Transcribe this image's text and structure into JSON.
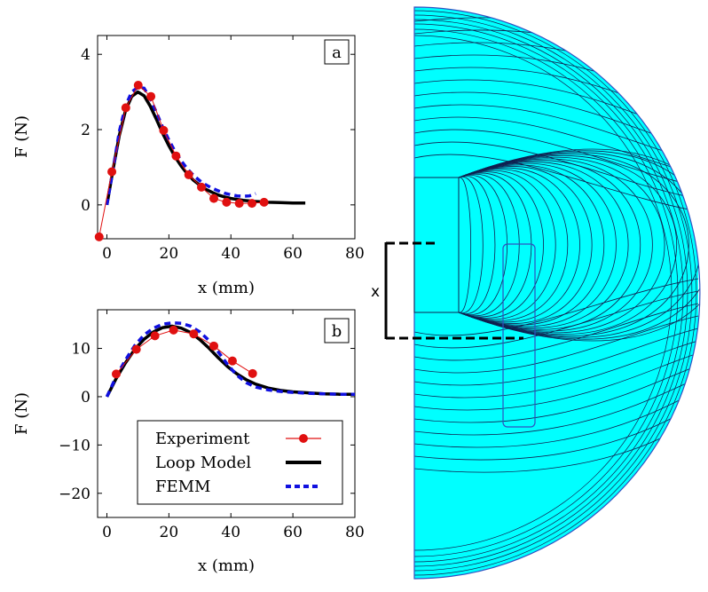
{
  "chart_data": [
    {
      "type": "line",
      "panel_label": "a",
      "xlabel": "x (mm)",
      "ylabel": "F (N)",
      "xlim": [
        -3,
        80
      ],
      "ylim": [
        -0.9,
        4.5
      ],
      "xticks": [
        0,
        20,
        40,
        60,
        80
      ],
      "yticks": [
        0,
        2,
        4
      ],
      "series": [
        {
          "name": "Experiment",
          "style": "markers-red",
          "x": [
            -2.5,
            1.6,
            6.1,
            10.1,
            14.2,
            18.3,
            22.3,
            26.4,
            30.5,
            34.5,
            38.6,
            42.7,
            46.8,
            50.7
          ],
          "y": [
            -0.85,
            0.88,
            2.58,
            3.18,
            2.88,
            1.98,
            1.3,
            0.8,
            0.47,
            0.17,
            0.07,
            0.04,
            0.04,
            0.07
          ]
        },
        {
          "name": "Loop Model",
          "style": "thick-black",
          "x": [
            0,
            2,
            4,
            6,
            8,
            10,
            12,
            14,
            16,
            18,
            20,
            22,
            24,
            26,
            28,
            30,
            32,
            34,
            36,
            38,
            40,
            44,
            48,
            52,
            56,
            60,
            64
          ],
          "y": [
            0,
            0.95,
            1.85,
            2.5,
            2.88,
            3.0,
            2.9,
            2.62,
            2.27,
            1.9,
            1.57,
            1.28,
            1.03,
            0.82,
            0.65,
            0.52,
            0.41,
            0.33,
            0.26,
            0.21,
            0.17,
            0.12,
            0.09,
            0.07,
            0.06,
            0.05,
            0.05
          ]
        },
        {
          "name": "FEMM",
          "style": "dashed-blue",
          "x": [
            0,
            2,
            4,
            6,
            8,
            10,
            12,
            14,
            16,
            18,
            20,
            22,
            24,
            26,
            28,
            30,
            32,
            34,
            36,
            38,
            40,
            42,
            44,
            46,
            48
          ],
          "y": [
            0,
            0.95,
            1.95,
            2.62,
            3.0,
            3.12,
            3.1,
            2.82,
            2.45,
            2.06,
            1.72,
            1.42,
            1.17,
            0.95,
            0.78,
            0.64,
            0.53,
            0.44,
            0.37,
            0.31,
            0.27,
            0.24,
            0.23,
            0.24,
            0.3
          ]
        }
      ]
    },
    {
      "type": "line",
      "panel_label": "b",
      "xlabel": "x (mm)",
      "ylabel": "F (N)",
      "xlim": [
        -3,
        80
      ],
      "ylim": [
        -25,
        18
      ],
      "xticks": [
        0,
        20,
        40,
        60,
        80
      ],
      "yticks": [
        -20,
        -10,
        0,
        10
      ],
      "legend": {
        "placement": "bottom-center",
        "entries": [
          "Experiment",
          "Loop Model",
          "FEMM"
        ]
      },
      "series": [
        {
          "name": "Experiment",
          "style": "markers-red",
          "x": [
            3.0,
            9.5,
            15.5,
            21.5,
            28.0,
            34.5,
            40.5,
            47.0
          ],
          "y": [
            4.7,
            9.8,
            12.6,
            13.8,
            13.0,
            10.5,
            7.4,
            4.8
          ]
        },
        {
          "name": "Loop Model",
          "style": "thick-black",
          "x": [
            0,
            3,
            6,
            9,
            12,
            15,
            18,
            21,
            24,
            27,
            30,
            33,
            36,
            39,
            42,
            45,
            48,
            52,
            56,
            60,
            65,
            70,
            75,
            80
          ],
          "y": [
            0,
            3.8,
            7.0,
            9.8,
            11.9,
            13.4,
            14.3,
            14.6,
            14.2,
            13.3,
            11.8,
            10.0,
            8.0,
            6.2,
            4.7,
            3.5,
            2.6,
            1.8,
            1.3,
            1.0,
            0.8,
            0.6,
            0.5,
            0.5
          ]
        },
        {
          "name": "FEMM",
          "style": "dashed-blue",
          "x": [
            0,
            3,
            6,
            9,
            12,
            15,
            18,
            21,
            24,
            27,
            30,
            33,
            36,
            39,
            42,
            45,
            48,
            52,
            56,
            60,
            65,
            70,
            75,
            80
          ],
          "y": [
            0,
            4.2,
            7.6,
            10.6,
            12.8,
            14.2,
            15.0,
            15.3,
            15.2,
            14.6,
            13.4,
            11.6,
            9.2,
            6.6,
            4.4,
            2.9,
            2.0,
            1.4,
            1.1,
            0.9,
            0.7,
            0.6,
            0.5,
            0.5
          ]
        }
      ]
    }
  ],
  "field_map": {
    "dimension_label": "x",
    "colors": {
      "background": "#00ffff",
      "hot": "#ff00ff",
      "warm": "#ffff00",
      "mid": "#7fff7f",
      "line": "#102050",
      "outline": "#3050c0"
    }
  }
}
